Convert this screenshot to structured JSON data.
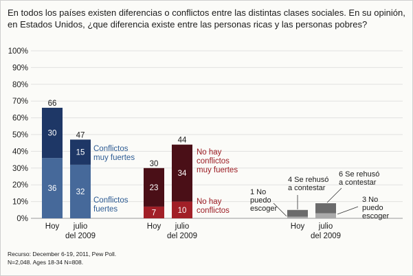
{
  "title": "En todos los países existen diferencias o conflictos entre las distintas clases sociales. En su opinión, en Estados Unidos, ¿que diferencia existe entre las personas ricas y las personas pobres?",
  "source_line1": "Recurso: December 6-19, 2011, Pew Poll.",
  "source_line2": "N=2,048. Ages 18-34 N=808.",
  "colors": {
    "strong_dark": "#1e3766",
    "strong_light": "#46699a",
    "none_dark": "#4a0f17",
    "none_light": "#a11f27",
    "other_dark": "#6b6b6b",
    "other_light": "#aaaaaa",
    "legend_blue": "#2d5b93",
    "legend_red": "#9b1b22"
  },
  "chart_data": {
    "type": "bar",
    "stacked": true,
    "ylim": [
      0,
      100
    ],
    "yticks": [
      "0%",
      "10%",
      "20%",
      "30%",
      "40%",
      "50%",
      "60%",
      "70%",
      "80%",
      "90%",
      "100%"
    ],
    "grid": true,
    "groups": [
      {
        "categories": [
          {
            "label": [
              "Hoy"
            ],
            "bottom": 36,
            "top": 30,
            "total": 66
          },
          {
            "label": [
              "julio",
              "del 2009"
            ],
            "bottom": 32,
            "top": 15,
            "total": 47
          }
        ],
        "legend_top": [
          "Conflictos",
          "muy fuertes"
        ],
        "legend_bottom": [
          "Conflictos",
          "fuertes"
        ]
      },
      {
        "categories": [
          {
            "label": [
              "Hoy"
            ],
            "bottom": 7,
            "top": 23,
            "total": 30
          },
          {
            "label": [
              "julio",
              "del 2009"
            ],
            "bottom": 10,
            "top": 34,
            "total": 44
          }
        ],
        "legend_top": [
          "No hay",
          "conflictos",
          "muy fuertes"
        ],
        "legend_bottom": [
          "No hay",
          "conflictos"
        ]
      },
      {
        "categories": [
          {
            "label": [
              "Hoy"
            ],
            "bottom": 1,
            "top": 4
          },
          {
            "label": [
              "julio",
              "del 2009"
            ],
            "bottom": 3,
            "top": 6
          }
        ],
        "annotations": {
          "hoy_bottom": [
            "1  No",
            "puedo",
            "escoger"
          ],
          "hoy_top": [
            "4  Se rehusó",
            "a contestar"
          ],
          "julio_top": [
            "6  Se rehusó",
            "a contestar"
          ],
          "julio_bottom": [
            "3  No",
            "puedo",
            "escoger"
          ]
        }
      }
    ]
  }
}
